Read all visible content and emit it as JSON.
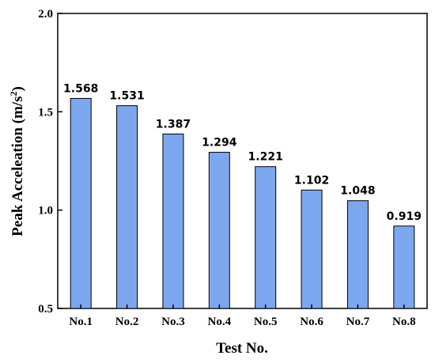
{
  "chart_data": {
    "type": "bar",
    "categories": [
      "No.1",
      "No.2",
      "No.3",
      "No.4",
      "No.5",
      "No.6",
      "No.7",
      "No.8"
    ],
    "values": [
      1.568,
      1.531,
      1.387,
      1.294,
      1.221,
      1.102,
      1.048,
      0.919
    ],
    "value_labels": [
      "1.568",
      "1.531",
      "1.387",
      "1.294",
      "1.221",
      "1.102",
      "1.048",
      "0.919"
    ],
    "title": "",
    "xlabel": "Test No.",
    "ylabel": "Peak Acceleation (m/s2)",
    "ylabel_main": "Peak Acceleation (m/s",
    "ylabel_sup": "2",
    "ylabel_close": ")",
    "ylim": [
      0.5,
      2.0
    ],
    "yticks": [
      "0.5",
      "1.0",
      "1.5",
      "2.0"
    ],
    "ytick_values": [
      0.5,
      1.0,
      1.5,
      2.0
    ],
    "grid": false,
    "legend": "none",
    "bar_color": "#7ca7ef"
  }
}
